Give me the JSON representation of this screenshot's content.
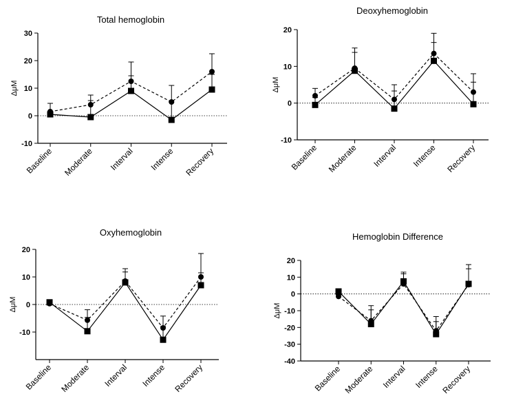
{
  "chart_data": [
    {
      "type": "line",
      "title": "Total hemoglobin",
      "ylabel": "ΔμM",
      "xlabel": "",
      "categories": [
        "Baseline",
        "Moderate",
        "Interval",
        "Intense",
        "Recovery"
      ],
      "ylim": [
        -10,
        30
      ],
      "yticks": [
        -10,
        0,
        10,
        20,
        30
      ],
      "zero_line": true,
      "series": [
        {
          "name": "circle-dashed",
          "marker": "circle",
          "line": "dashed",
          "values": [
            1.5,
            4,
            12.5,
            5,
            16
          ],
          "err": [
            3,
            3.5,
            7,
            6,
            6.5
          ]
        },
        {
          "name": "square-solid",
          "marker": "square",
          "line": "solid",
          "values": [
            0.5,
            -0.5,
            9,
            -1.5,
            9.5
          ],
          "err": [
            1,
            6,
            5.5,
            6.5,
            5.5
          ]
        }
      ]
    },
    {
      "type": "line",
      "title": "Deoxyhemoglobin",
      "ylabel": "ΔμM",
      "xlabel": "",
      "categories": [
        "Baseline",
        "Moderate",
        "Interval",
        "Intense",
        "Recovery"
      ],
      "ylim": [
        -10,
        20
      ],
      "yticks": [
        -10,
        0,
        10,
        20
      ],
      "zero_line": true,
      "series": [
        {
          "name": "circle-dashed",
          "marker": "circle",
          "line": "dashed",
          "values": [
            2,
            9.5,
            1,
            13.5,
            3
          ],
          "err": [
            2,
            5.5,
            4,
            5.5,
            5
          ]
        },
        {
          "name": "square-solid",
          "marker": "square",
          "line": "solid",
          "values": [
            -0.5,
            8.8,
            -1.5,
            11.5,
            -0.3
          ],
          "err": [
            2,
            5,
            4.8,
            5,
            6
          ]
        }
      ]
    },
    {
      "type": "line",
      "title": "Oxyhemoglobin",
      "ylabel": "ΔμM",
      "xlabel": "",
      "categories": [
        "Baseline",
        "Moderate",
        "Interval",
        "Intense",
        "Recovery"
      ],
      "ylim": [
        -20,
        20
      ],
      "yticks": [
        -10,
        0,
        10,
        20
      ],
      "zero_line": true,
      "series": [
        {
          "name": "circle-dashed",
          "marker": "circle",
          "line": "dashed",
          "values": [
            0.3,
            -5.7,
            8.5,
            -8.5,
            10
          ],
          "err": [
            0.8,
            3.8,
            4.5,
            4.3,
            8.5
          ]
        },
        {
          "name": "square-solid",
          "marker": "square",
          "line": "solid",
          "values": [
            0.8,
            -9.7,
            8,
            -12.8,
            7
          ],
          "err": [
            0.8,
            5,
            3.8,
            4.8,
            4.5
          ]
        }
      ]
    },
    {
      "type": "line",
      "title": "Hemoglobin Difference",
      "ylabel": "ΔμM",
      "xlabel": "",
      "categories": [
        "Baseline",
        "Moderate",
        "Interval",
        "Intense",
        "Recovery"
      ],
      "ylim": [
        -40,
        20
      ],
      "yticks": [
        -40,
        -30,
        -20,
        -10,
        0,
        10,
        20
      ],
      "zero_line": true,
      "series": [
        {
          "name": "circle-dashed",
          "marker": "circle",
          "line": "dashed",
          "values": [
            -1.5,
            -16,
            6,
            -22,
            5.5
          ],
          "err": [
            1,
            9,
            6,
            8.5,
            12
          ]
        },
        {
          "name": "square-solid",
          "marker": "square",
          "line": "solid",
          "values": [
            1.5,
            -18,
            7.5,
            -24,
            6
          ],
          "err": [
            1,
            8.5,
            5.5,
            7.5,
            9
          ]
        }
      ]
    }
  ]
}
